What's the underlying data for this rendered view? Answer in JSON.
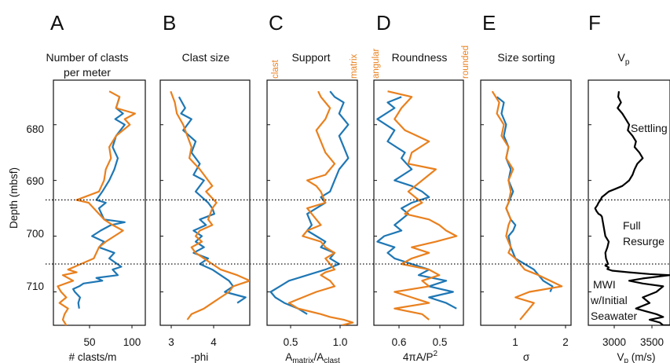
{
  "colors": {
    "blue": "#1f77b4",
    "orange": "#e9801e",
    "black": "#000000"
  },
  "y_axis": {
    "label": "Depth (mbsf)",
    "ticks": [
      "680",
      "690",
      "700",
      "710"
    ]
  },
  "reference_lines": {
    "depths": [
      693.5,
      705
    ],
    "style": "dotted"
  },
  "panels": [
    {
      "letter": "A",
      "title_lines": [
        "Number of clasts",
        "per meter"
      ],
      "xlabel": "# clasts/m",
      "ticks": [
        "50",
        "100"
      ]
    },
    {
      "letter": "B",
      "title_lines": [
        "Clast size"
      ],
      "xlabel": "-phi",
      "ticks": [
        "3",
        "4"
      ]
    },
    {
      "letter": "C",
      "title_lines": [
        "Support"
      ],
      "xlabel": "A",
      "xlabel_sub1": "matrix",
      "xlabel_mid": "/A",
      "xlabel_sub2": "clast",
      "ticks": [
        "0.5",
        "1.0"
      ],
      "end_labels": [
        "clast",
        "matrix"
      ]
    },
    {
      "letter": "D",
      "title_lines": [
        "Roundness"
      ],
      "xlabel": "4πA/P",
      "xlabel_sup": "2",
      "ticks": [
        "0.6",
        "0.5"
      ],
      "end_labels": [
        "angular",
        "rounded"
      ]
    },
    {
      "letter": "E",
      "title_lines": [
        "Size sorting"
      ],
      "xlabel": "σ",
      "ticks": [
        "1",
        "2"
      ]
    },
    {
      "letter": "F",
      "title_lines": [
        "V"
      ],
      "title_sub": "p",
      "xlabel": "V",
      "xlabel_sub": "p",
      "xlabel_rest": " (m/s)",
      "ticks": [
        "3000",
        "3500"
      ],
      "annotations": [
        "Settling",
        "Full",
        "Resurge",
        "MWI",
        "w/Initial",
        "Seawater"
      ]
    }
  ],
  "chart_data": [
    {
      "type": "line",
      "panel": "A",
      "xlabel": "# clasts/m",
      "xlim": [
        5,
        112
      ],
      "ylim": [
        672,
        716
      ],
      "y_reversed": true,
      "series": [
        {
          "color": "#1f77b4",
          "x": [
            82,
            78,
            86,
            77,
            88,
            78,
            74,
            80,
            76,
            70,
            62,
            55,
            66,
            58,
            64,
            88,
            72,
            60,
            50,
            64,
            58,
            76,
            70,
            84,
            74,
            80,
            55,
            62,
            40,
            35,
            28,
            30,
            36,
            34,
            35
          ],
          "y": [
            675,
            677,
            678,
            679,
            680,
            682,
            684,
            686,
            688,
            690,
            692,
            693.5,
            694,
            695,
            697,
            697.5,
            698,
            699,
            700,
            701,
            702,
            703,
            704,
            705.5,
            706,
            707,
            707.5,
            708,
            708.5,
            709,
            709.5,
            710,
            711,
            712,
            713
          ]
        },
        {
          "color": "#e9801e",
          "x": [
            70,
            82,
            78,
            100,
            88,
            94,
            78,
            70,
            72,
            66,
            64,
            58,
            32,
            46,
            58,
            64,
            74,
            86,
            66,
            58,
            52,
            22,
            32,
            16,
            28,
            10,
            14,
            20,
            12,
            22,
            18,
            16,
            20,
            18
          ],
          "y": [
            674,
            675,
            677,
            678,
            679,
            680,
            682,
            684,
            686,
            688,
            690,
            692,
            693.5,
            694,
            696,
            697,
            698,
            699,
            701,
            702,
            704,
            706,
            706.5,
            707,
            708,
            709,
            710,
            711,
            712,
            713,
            714,
            715,
            716,
            716
          ]
        }
      ]
    },
    {
      "type": "line",
      "panel": "B",
      "xlabel": "-phi",
      "xlim": [
        2.75,
        4.9
      ],
      "ylim": [
        672,
        716
      ],
      "y_reversed": true,
      "series": [
        {
          "color": "#1f77b4",
          "x": [
            3.2,
            3.35,
            3.25,
            3.5,
            3.3,
            3.6,
            3.5,
            3.7,
            3.55,
            3.8,
            3.6,
            3.9,
            4.0,
            4.05,
            3.7,
            3.85,
            3.55,
            3.75,
            3.6,
            3.8,
            3.55,
            3.9,
            3.7,
            4.0,
            4.2,
            4.4,
            4.5,
            4.3,
            4.8,
            4.6
          ],
          "y": [
            675,
            677,
            678,
            679,
            681,
            683,
            685,
            687,
            689,
            690,
            692,
            694,
            695,
            696,
            697,
            698,
            699,
            700,
            701,
            702,
            703,
            704,
            705,
            706,
            707,
            708,
            709,
            710,
            711,
            712
          ]
        },
        {
          "color": "#e9801e",
          "x": [
            3.0,
            3.1,
            3.15,
            3.3,
            3.4,
            3.5,
            3.45,
            3.7,
            3.8,
            3.9,
            4.0,
            3.85,
            4.1,
            4.0,
            3.9,
            4.0,
            3.7,
            3.6,
            3.75,
            3.5,
            3.6,
            3.8,
            4.0,
            4.2,
            4.6,
            4.9,
            4.5,
            4.4,
            4.2,
            4.0,
            3.8,
            3.5,
            3.4
          ],
          "y": [
            674,
            676,
            678,
            680,
            682,
            684,
            686,
            688,
            689,
            690,
            691,
            692,
            694,
            695,
            697,
            698,
            699,
            700,
            701,
            702,
            703,
            704,
            705,
            706,
            707,
            708,
            709,
            710,
            711,
            712,
            713,
            714,
            715
          ]
        }
      ]
    },
    {
      "type": "line",
      "panel": "C",
      "xlabel": "Amatrix/Aclast",
      "xlim": [
        0.16,
        1.15
      ],
      "ylim": [
        672,
        716
      ],
      "y_reversed": true,
      "series": [
        {
          "color": "#1f77b4",
          "x": [
            0.85,
            0.9,
            1.0,
            0.95,
            1.05,
            0.95,
            1.0,
            1.05,
            0.95,
            0.9,
            0.85,
            0.75,
            0.8,
            0.7,
            0.6,
            0.65,
            0.6,
            0.7,
            0.8,
            0.75,
            0.9,
            0.85,
            0.95,
            0.8,
            0.6,
            0.4,
            0.3,
            0.2,
            0.25,
            0.35,
            0.5,
            0.6
          ],
          "y": [
            674,
            675,
            676,
            678,
            680,
            682,
            684,
            686,
            688,
            690,
            692,
            693,
            694,
            695,
            696,
            698,
            699,
            700,
            701,
            702,
            703,
            704,
            705,
            706,
            707,
            708,
            709,
            710,
            711,
            712,
            713,
            714
          ]
        },
        {
          "color": "#e9801e",
          "x": [
            0.72,
            0.75,
            0.85,
            0.8,
            0.7,
            0.75,
            0.8,
            0.9,
            0.8,
            0.6,
            0.7,
            0.75,
            0.8,
            0.6,
            0.7,
            0.75,
            0.6,
            0.55,
            0.75,
            0.8,
            0.9,
            0.8,
            0.85,
            0.9,
            0.8,
            0.75,
            0.85,
            0.9,
            0.7,
            0.55,
            0.4,
            0.5,
            0.75,
            0.85,
            1.0,
            1.1,
            0.98
          ],
          "y": [
            674,
            675,
            677,
            679,
            681,
            683,
            685,
            687,
            689,
            690,
            691,
            692,
            694,
            695,
            697,
            698,
            699,
            700,
            701,
            702,
            703,
            704,
            705,
            706,
            706.5,
            707,
            708,
            709,
            710,
            711,
            712,
            713,
            714,
            714.5,
            715,
            715.5,
            716
          ]
        }
      ]
    },
    {
      "type": "line",
      "panel": "D",
      "xlabel": "4πA/P2",
      "xlim": [
        0.66,
        0.4
      ],
      "ylim": [
        672,
        716
      ],
      "y_reversed": true,
      "series": [
        {
          "color": "#1f77b4",
          "x": [
            0.58,
            0.62,
            0.6,
            0.65,
            0.6,
            0.62,
            0.57,
            0.58,
            0.55,
            0.6,
            0.55,
            0.52,
            0.5,
            0.55,
            0.58,
            0.56,
            0.6,
            0.58,
            0.63,
            0.65,
            0.6,
            0.62,
            0.6,
            0.55,
            0.5,
            0.53,
            0.45,
            0.5,
            0.43,
            0.5,
            0.45,
            0.42
          ],
          "y": [
            675,
            676,
            677,
            679,
            681,
            683,
            685,
            686,
            688,
            690,
            691,
            692,
            693,
            694,
            695,
            696,
            698,
            699,
            700,
            701,
            702,
            703,
            704,
            705,
            706,
            707,
            708,
            709,
            710,
            711,
            712,
            713
          ]
        },
        {
          "color": "#e9801e",
          "x": [
            0.62,
            0.55,
            0.58,
            0.6,
            0.57,
            0.5,
            0.55,
            0.56,
            0.48,
            0.52,
            0.56,
            0.52,
            0.55,
            0.57,
            0.5,
            0.47,
            0.45,
            0.42,
            0.48,
            0.55,
            0.5,
            0.55,
            0.58,
            0.5,
            0.47,
            0.52,
            0.5,
            0.6,
            0.55,
            0.5,
            0.6,
            0.52,
            0.5
          ],
          "y": [
            674,
            675,
            677,
            679,
            681,
            683,
            685,
            687,
            688,
            690,
            692,
            694,
            695,
            696,
            697,
            698,
            699,
            700,
            701,
            702,
            703,
            704,
            705,
            706,
            707,
            708,
            709,
            710,
            711,
            712,
            713,
            714,
            715
          ]
        }
      ]
    },
    {
      "type": "line",
      "panel": "E",
      "xlabel": "σ",
      "xlim": [
        0.25,
        2.2
      ],
      "ylim": [
        672,
        716
      ],
      "y_reversed": true,
      "series": [
        {
          "color": "#1f77b4",
          "x": [
            0.6,
            0.75,
            0.7,
            0.8,
            0.75,
            0.85,
            0.8,
            0.9,
            0.85,
            0.95,
            0.9,
            0.85,
            0.8,
            0.9,
            1.0,
            0.95,
            0.85,
            0.9,
            0.95,
            1.0,
            1.2,
            1.4,
            1.5,
            1.6,
            1.8,
            1.75
          ],
          "y": [
            675,
            676,
            678,
            680,
            682,
            684,
            686,
            688,
            690,
            692,
            693,
            694,
            695,
            697,
            698,
            699,
            700,
            702,
            703,
            704,
            705,
            706,
            707,
            708,
            709,
            710
          ]
        },
        {
          "color": "#e9801e",
          "x": [
            0.5,
            0.65,
            0.6,
            0.75,
            0.7,
            0.85,
            0.8,
            0.95,
            0.85,
            0.9,
            0.85,
            0.8,
            0.9,
            0.85,
            0.8,
            0.9,
            0.85,
            1.0,
            1.2,
            1.5,
            2.0,
            1.3,
            1.0,
            1.4,
            1.2,
            1.1
          ],
          "y": [
            674,
            676,
            678,
            680,
            682,
            684,
            686,
            688,
            690,
            692,
            694,
            695,
            697,
            698,
            700,
            702,
            703,
            704,
            706,
            707,
            709,
            710,
            711,
            712,
            714,
            715
          ]
        }
      ]
    },
    {
      "type": "line",
      "panel": "F",
      "xlabel": "Vp (m/s)",
      "xlim": [
        2700,
        3900
      ],
      "ylim": [
        672,
        716
      ],
      "y_reversed": true,
      "series": [
        {
          "color": "#000000",
          "x": [
            3150,
            3140,
            3180,
            3130,
            3200,
            3250,
            3300,
            3280,
            3350,
            3400,
            3380,
            3450,
            3500,
            3420,
            3380,
            3350,
            3300,
            3250,
            3200,
            3100,
            3000,
            2950,
            2900,
            2880,
            2850,
            2830,
            2800,
            2820,
            2850,
            2880,
            2900,
            2950,
            3000,
            2980,
            2950,
            2960,
            2990,
            2950,
            3000,
            2980,
            3050,
            3300,
            3600,
            3900,
            3700,
            3500,
            3300,
            3500,
            3800,
            3700,
            3500,
            3600,
            3400,
            3550,
            3700,
            3800,
            3600,
            3750,
            3800,
            3900
          ],
          "y": [
            674,
            675,
            676,
            677,
            678,
            679,
            680,
            681,
            682,
            683,
            684,
            685,
            686,
            687,
            688,
            689,
            690,
            690.5,
            691,
            691.5,
            692,
            692.5,
            693,
            693.5,
            694,
            694.5,
            695,
            695.5,
            696,
            696.2,
            696.5,
            700,
            701,
            702,
            703,
            704,
            705,
            705.3,
            705.6,
            705.9,
            706.2,
            706.5,
            706.8,
            707,
            707.3,
            707.6,
            708,
            708.5,
            709,
            710,
            711,
            712,
            713,
            713.5,
            714,
            714.5,
            715,
            715.5,
            716,
            716
          ]
        }
      ]
    }
  ]
}
